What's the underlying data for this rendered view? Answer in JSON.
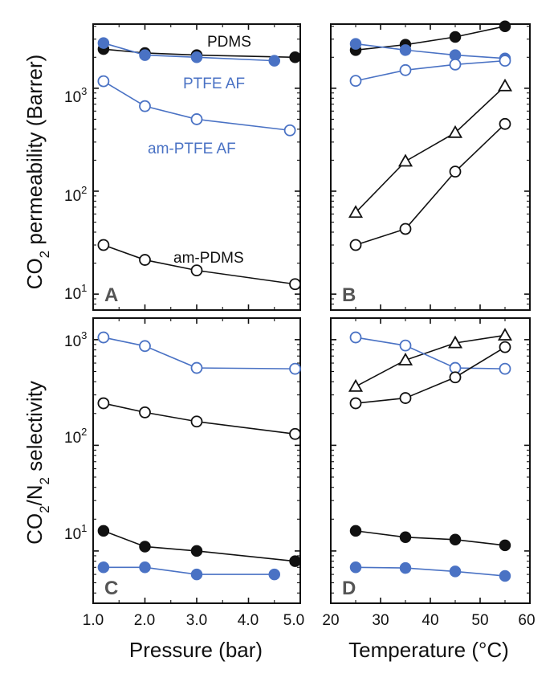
{
  "colors": {
    "black": "#111111",
    "blue": "#4a72c4",
    "frame": "#111111"
  },
  "axes": {
    "ylabel_top": "CO₂ permeability (Barrer)",
    "ylabel_top_parts": [
      "CO",
      "2",
      " permeability (Barrer)"
    ],
    "ylabel_bottom": "CO₂/N₂ selectivity",
    "ylabel_bottom_parts": [
      "CO",
      "2",
      "/N",
      "2",
      " selectivity"
    ],
    "xlabel_left": "Pressure (bar)",
    "xlabel_right": "Temperature (°C)",
    "pressure_ticks": [
      "1.0",
      "2.0",
      "3.0",
      "4.0",
      "5.0"
    ],
    "temperature_ticks": [
      "20",
      "30",
      "40",
      "50",
      "60"
    ],
    "top_y_ticks": [
      {
        "base": "10",
        "exp": "1"
      },
      {
        "base": "10",
        "exp": "2"
      },
      {
        "base": "10",
        "exp": "3"
      }
    ],
    "bottom_y_ticks": [
      {
        "base": "10",
        "exp": "1"
      },
      {
        "base": "10",
        "exp": "2"
      },
      {
        "base": "10",
        "exp": "3"
      }
    ]
  },
  "series_labels": {
    "pdms": "PDMS",
    "ptfe": "PTFE AF",
    "am_ptfe": "am-PTFE AF",
    "am_pdms": "am-PDMS"
  },
  "chart_data": [
    {
      "panel": "A",
      "type": "line",
      "xlabel": "Pressure (bar)",
      "ylabel": "CO₂ permeability (Barrer)",
      "xlim": [
        1.0,
        5.0
      ],
      "ylim": [
        7,
        4200
      ],
      "yscale": "log",
      "series": [
        {
          "name": "PDMS",
          "marker": "filled-circle",
          "color": "black",
          "x": [
            1.2,
            2.0,
            3.0,
            4.9
          ],
          "y": [
            2400,
            2200,
            2100,
            2000
          ]
        },
        {
          "name": "PTFE AF",
          "marker": "filled-circle",
          "color": "blue",
          "x": [
            1.2,
            2.0,
            3.0,
            4.5
          ],
          "y": [
            2750,
            2100,
            2000,
            1850
          ]
        },
        {
          "name": "am-PTFE AF",
          "marker": "open-circle",
          "color": "blue",
          "x": [
            1.2,
            2.0,
            3.0,
            4.8
          ],
          "y": [
            1170,
            670,
            500,
            390
          ]
        },
        {
          "name": "am-PDMS",
          "marker": "open-circle",
          "color": "black",
          "x": [
            1.2,
            2.0,
            3.0,
            4.9
          ],
          "y": [
            30,
            21.5,
            17,
            12.5
          ]
        }
      ]
    },
    {
      "panel": "B",
      "type": "line",
      "xlabel": "Temperature (°C)",
      "ylabel": "CO₂ permeability (Barrer)",
      "xlim": [
        20,
        60
      ],
      "ylim": [
        7,
        4200
      ],
      "yscale": "log",
      "series": [
        {
          "name": "PDMS",
          "marker": "filled-circle",
          "color": "black",
          "x": [
            25,
            35,
            45,
            55
          ],
          "y": [
            2350,
            2650,
            3150,
            4000
          ]
        },
        {
          "name": "PTFE AF",
          "marker": "filled-circle",
          "color": "blue",
          "x": [
            25,
            35,
            45,
            55
          ],
          "y": [
            2700,
            2350,
            2100,
            1950
          ]
        },
        {
          "name": "am-PTFE AF",
          "marker": "open-circle",
          "color": "blue",
          "x": [
            25,
            35,
            45,
            55
          ],
          "y": [
            1180,
            1500,
            1700,
            1850
          ]
        },
        {
          "name": "triangle series",
          "marker": "open-triangle",
          "color": "black",
          "x": [
            25,
            35,
            45,
            55
          ],
          "y": [
            62,
            195,
            370,
            1050
          ]
        },
        {
          "name": "am-PDMS",
          "marker": "open-circle",
          "color": "black",
          "x": [
            25,
            35,
            45,
            55
          ],
          "y": [
            30,
            43,
            155,
            450
          ]
        }
      ]
    },
    {
      "panel": "C",
      "type": "line",
      "xlabel": "Pressure (bar)",
      "ylabel": "CO₂/N₂ selectivity",
      "xlim": [
        1.0,
        5.0
      ],
      "ylim": [
        3.2,
        1600
      ],
      "yscale": "log",
      "series": [
        {
          "name": "am-PTFE AF",
          "marker": "open-circle",
          "color": "blue",
          "x": [
            1.2,
            2.0,
            3.0,
            4.9
          ],
          "y": [
            1050,
            870,
            540,
            530
          ]
        },
        {
          "name": "am-PDMS",
          "marker": "open-circle",
          "color": "black",
          "x": [
            1.2,
            2.0,
            3.0,
            4.9
          ],
          "y": [
            250,
            205,
            168,
            128
          ]
        },
        {
          "name": "PDMS",
          "marker": "filled-circle",
          "color": "black",
          "x": [
            1.2,
            2.0,
            3.0,
            4.9
          ],
          "y": [
            15.5,
            11,
            10,
            8
          ]
        },
        {
          "name": "PTFE AF",
          "marker": "filled-circle",
          "color": "blue",
          "x": [
            1.2,
            2.0,
            3.0,
            4.5
          ],
          "y": [
            7,
            7,
            6,
            6
          ]
        }
      ]
    },
    {
      "panel": "D",
      "type": "line",
      "xlabel": "Temperature (°C)",
      "ylabel": "CO₂/N₂ selectivity",
      "xlim": [
        20,
        60
      ],
      "ylim": [
        3.2,
        1600
      ],
      "yscale": "log",
      "series": [
        {
          "name": "triangle series",
          "marker": "open-triangle",
          "color": "black",
          "x": [
            25,
            35,
            45,
            55
          ],
          "y": [
            360,
            640,
            930,
            1100
          ]
        },
        {
          "name": "am-PTFE AF",
          "marker": "open-circle",
          "color": "blue",
          "x": [
            25,
            35,
            45,
            55
          ],
          "y": [
            1050,
            880,
            540,
            530
          ]
        },
        {
          "name": "am-PDMS",
          "marker": "open-circle",
          "color": "black",
          "x": [
            25,
            35,
            45,
            55
          ],
          "y": [
            250,
            280,
            440,
            850
          ]
        },
        {
          "name": "PDMS",
          "marker": "filled-circle",
          "color": "black",
          "x": [
            25,
            35,
            45,
            55
          ],
          "y": [
            15.5,
            13.5,
            12.8,
            11.3
          ]
        },
        {
          "name": "PTFE AF",
          "marker": "filled-circle",
          "color": "blue",
          "x": [
            25,
            35,
            45,
            55
          ],
          "y": [
            7,
            6.9,
            6.4,
            5.8
          ]
        }
      ]
    }
  ]
}
